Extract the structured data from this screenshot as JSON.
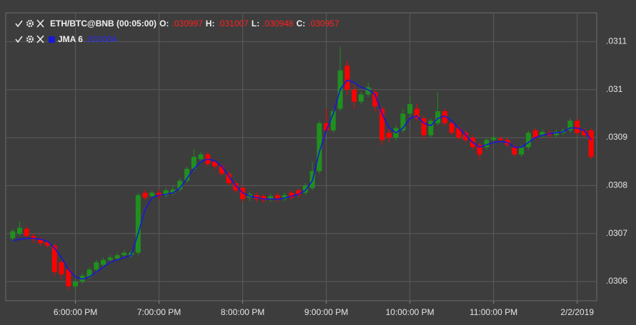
{
  "chart_data": {
    "type": "candlestick",
    "header": {
      "symbol": "ETH/BTC@BNB (00:05:00)",
      "fields": [
        {
          "label": "O:",
          "value": ".030997"
        },
        {
          "label": "H:",
          "value": ".031007"
        },
        {
          "label": "L:",
          "value": ".030948"
        },
        {
          "label": "C:",
          "value": ".030957"
        }
      ],
      "indicator_value": ".031004"
    },
    "x": [
      1035,
      1040,
      1045,
      1050,
      1055,
      1060,
      1065,
      1070,
      1075,
      1080,
      1085,
      1090,
      1095,
      1100,
      1105,
      1110,
      1115,
      1120,
      1125,
      1130,
      1135,
      1140,
      1145,
      1150,
      1155,
      1160,
      1165,
      1170,
      1175,
      1180,
      1185,
      1190,
      1195,
      1200,
      1205,
      1210,
      1215,
      1220,
      1225,
      1230,
      1235,
      1240,
      1245,
      1250,
      1255,
      1260,
      1265,
      1270,
      1275,
      1280,
      1285,
      1290,
      1295,
      1300,
      1305,
      1310,
      1315,
      1320,
      1325,
      1330,
      1335,
      1340,
      1345,
      1350,
      1355,
      1360,
      1365,
      1370,
      1375,
      1380,
      1385,
      1390,
      1395,
      1400,
      1405,
      1410,
      1415,
      1420,
      1425,
      1430,
      1435,
      1440,
      1445,
      1450
    ],
    "open": [
      0.03069,
      0.0307,
      0.03071,
      0.030695,
      0.030688,
      0.030682,
      0.030675,
      0.03064,
      0.030625,
      0.03059,
      0.0306,
      0.03061,
      0.030625,
      0.030635,
      0.030645,
      0.030648,
      0.030655,
      0.030655,
      0.03066,
      0.030785,
      0.030778,
      0.030785,
      0.03078,
      0.030785,
      0.030792,
      0.03081,
      0.030835,
      0.030855,
      0.030865,
      0.03085,
      0.03084,
      0.030825,
      0.030805,
      0.030795,
      0.030775,
      0.03078,
      0.030778,
      0.030772,
      0.03078,
      0.030772,
      0.030785,
      0.03079,
      0.030785,
      0.030795,
      0.03083,
      0.03093,
      0.030915,
      0.03096,
      0.03105,
      0.031,
      0.030975,
      0.03099,
      0.030995,
      0.03096,
      0.03091,
      0.0309,
      0.030915,
      0.03095,
      0.03096,
      0.03094,
      0.030905,
      0.03093,
      0.030955,
      0.03093,
      0.03092,
      0.03091,
      0.0309,
      0.030885,
      0.03088,
      0.030895,
      0.030898,
      0.030895,
      0.03088,
      0.030865,
      0.03088,
      0.030915,
      0.030905,
      0.03091,
      0.030905,
      0.03091,
      0.030915,
      0.030935,
      0.030915,
      0.030915
    ],
    "high": [
      0.03071,
      0.030725,
      0.030715,
      0.0307,
      0.030693,
      0.030687,
      0.03068,
      0.030645,
      0.03063,
      0.030605,
      0.030618,
      0.03063,
      0.030645,
      0.03065,
      0.030655,
      0.03066,
      0.030665,
      0.030665,
      0.030785,
      0.03079,
      0.03079,
      0.030792,
      0.030795,
      0.0308,
      0.030815,
      0.03084,
      0.030875,
      0.03087,
      0.03087,
      0.030855,
      0.030845,
      0.03083,
      0.03081,
      0.0308,
      0.030788,
      0.030785,
      0.030782,
      0.030783,
      0.030785,
      0.030786,
      0.03079,
      0.030795,
      0.030805,
      0.03085,
      0.030935,
      0.03096,
      0.03096,
      0.03109,
      0.03106,
      0.03101,
      0.030995,
      0.031015,
      0.031,
      0.030965,
      0.03092,
      0.030925,
      0.03096,
      0.030985,
      0.03097,
      0.030945,
      0.03094,
      0.030995,
      0.03096,
      0.030935,
      0.030925,
      0.030915,
      0.030905,
      0.03089,
      0.0309,
      0.030905,
      0.030903,
      0.0309,
      0.030885,
      0.030885,
      0.030915,
      0.03092,
      0.030917,
      0.030915,
      0.030917,
      0.03092,
      0.03094,
      0.03094,
      0.03092,
      0.03092
    ],
    "low": [
      0.030685,
      0.030695,
      0.03069,
      0.03068,
      0.030675,
      0.03067,
      0.030612,
      0.030605,
      0.030582,
      0.030585,
      0.030595,
      0.030605,
      0.03062,
      0.03063,
      0.03064,
      0.030643,
      0.03065,
      0.03065,
      0.030655,
      0.03077,
      0.030772,
      0.030772,
      0.030775,
      0.03078,
      0.030788,
      0.030805,
      0.03083,
      0.03085,
      0.03084,
      0.030835,
      0.03082,
      0.0308,
      0.030785,
      0.030765,
      0.030768,
      0.030765,
      0.030764,
      0.030766,
      0.030766,
      0.030767,
      0.03077,
      0.030775,
      0.03078,
      0.03079,
      0.030825,
      0.03091,
      0.03091,
      0.030955,
      0.03099,
      0.03096,
      0.03097,
      0.030985,
      0.030955,
      0.030885,
      0.03089,
      0.030895,
      0.03091,
      0.030945,
      0.030935,
      0.030895,
      0.0309,
      0.030925,
      0.030925,
      0.030905,
      0.030895,
      0.03089,
      0.030875,
      0.030855,
      0.030875,
      0.03089,
      0.03089,
      0.03088,
      0.03086,
      0.03086,
      0.030875,
      0.030895,
      0.0309,
      0.0309,
      0.0309,
      0.030905,
      0.03091,
      0.030905,
      0.0309,
      0.030855
    ],
    "close": [
      0.030705,
      0.030712,
      0.030695,
      0.030688,
      0.03068,
      0.030675,
      0.03062,
      0.030615,
      0.03059,
      0.0306,
      0.030612,
      0.030625,
      0.03064,
      0.030645,
      0.03065,
      0.030655,
      0.03066,
      0.03066,
      0.03078,
      0.030775,
      0.030785,
      0.030778,
      0.03079,
      0.030792,
      0.03081,
      0.030835,
      0.03086,
      0.030865,
      0.030845,
      0.03084,
      0.030825,
      0.030805,
      0.03079,
      0.030772,
      0.030782,
      0.030772,
      0.03077,
      0.030778,
      0.030772,
      0.03078,
      0.030775,
      0.03078,
      0.0308,
      0.03083,
      0.03093,
      0.030915,
      0.030955,
      0.03104,
      0.031,
      0.030975,
      0.03099,
      0.031005,
      0.030965,
      0.030895,
      0.0309,
      0.03092,
      0.03095,
      0.03097,
      0.03094,
      0.030905,
      0.030935,
      0.030955,
      0.03093,
      0.03091,
      0.0309,
      0.030895,
      0.03088,
      0.030865,
      0.030895,
      0.0309,
      0.030895,
      0.030885,
      0.030865,
      0.03088,
      0.03091,
      0.0309,
      0.030912,
      0.030905,
      0.030912,
      0.030915,
      0.030935,
      0.03091,
      0.030905,
      0.03086
    ],
    "up_color": "#1f8f1f",
    "down_color": "#ff0000",
    "series": [
      {
        "name": "JMA 6",
        "color": "#1818d8",
        "values": [
          0.030685,
          0.030688,
          0.03069,
          0.03069,
          0.030688,
          0.030684,
          0.03067,
          0.03065,
          0.030625,
          0.03061,
          0.030605,
          0.03061,
          0.03062,
          0.03063,
          0.03064,
          0.030645,
          0.03065,
          0.030655,
          0.0307,
          0.03075,
          0.030775,
          0.03078,
          0.030782,
          0.030785,
          0.030795,
          0.030815,
          0.030835,
          0.03085,
          0.030855,
          0.030852,
          0.03084,
          0.03082,
          0.0308,
          0.030785,
          0.030778,
          0.030775,
          0.030772,
          0.030772,
          0.030772,
          0.030774,
          0.030778,
          0.030782,
          0.03079,
          0.03081,
          0.03087,
          0.030915,
          0.03095,
          0.031,
          0.03102,
          0.031015,
          0.031005,
          0.031,
          0.03099,
          0.03095,
          0.03092,
          0.03091,
          0.03092,
          0.03094,
          0.030945,
          0.03093,
          0.030925,
          0.03094,
          0.030945,
          0.030935,
          0.03092,
          0.030905,
          0.03089,
          0.03088,
          0.030885,
          0.03089,
          0.030892,
          0.03089,
          0.03088,
          0.03088,
          0.03089,
          0.0309,
          0.030905,
          0.030908,
          0.03091,
          0.030912,
          0.03092,
          0.03092,
          0.030915,
          0.030895
        ]
      }
    ],
    "xlim": [
      1030,
      1454
    ],
    "xticks": [
      {
        "value": 1080,
        "label": "6:00:00 PM"
      },
      {
        "value": 1140,
        "label": "7:00:00 PM"
      },
      {
        "value": 1200,
        "label": "8:00:00 PM"
      },
      {
        "value": 1260,
        "label": "9:00:00 PM"
      },
      {
        "value": 1320,
        "label": "10:00:00 PM"
      },
      {
        "value": 1380,
        "label": "11:00:00 PM"
      },
      {
        "value": 1440,
        "label": "2/2/2019"
      }
    ],
    "ylim": [
      0.03056,
      0.03116
    ],
    "yticks": [
      {
        "value": 0.0306,
        "label": ".0306"
      },
      {
        "value": 0.0307,
        "label": ".0307"
      },
      {
        "value": 0.0308,
        "label": ".0308"
      },
      {
        "value": 0.0309,
        "label": ".0309"
      },
      {
        "value": 0.031,
        "label": ".031"
      },
      {
        "value": 0.0311,
        "label": ".0311"
      }
    ],
    "grid": true
  }
}
